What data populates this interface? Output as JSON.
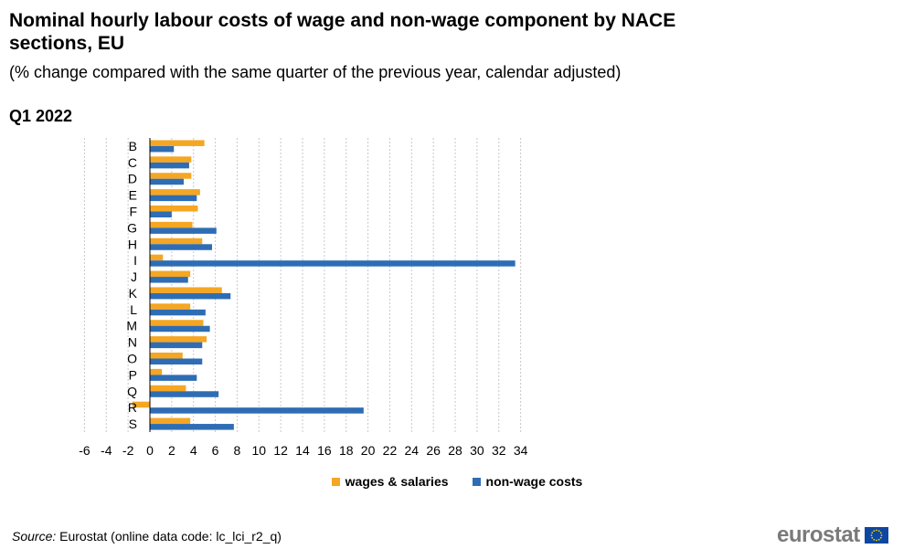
{
  "header": {
    "title": "Nominal hourly labour costs of wage and non-wage component by NACE sections, EU",
    "subtitle": "(% change compared with the same quarter of the previous year, calendar adjusted)",
    "period": "Q1 2022"
  },
  "source": {
    "label": "Source:",
    "text": " Eurostat (online data code: lc_lci_r2_q)"
  },
  "logo": {
    "text": "eurostat"
  },
  "colors": {
    "wages": "#f5a623",
    "nonwage": "#2e6db4",
    "grid": "#c8c8c8",
    "logo_blue": "#0e47a1",
    "logo_star": "#ffd400"
  },
  "chart_data": {
    "type": "bar",
    "orientation": "horizontal",
    "categories": [
      "B",
      "C",
      "D",
      "E",
      "F",
      "G",
      "H",
      "I",
      "J",
      "K",
      "L",
      "M",
      "N",
      "O",
      "P",
      "Q",
      "R",
      "S"
    ],
    "series": [
      {
        "name": "wages & salaries",
        "values": [
          5.0,
          3.8,
          3.8,
          4.6,
          4.4,
          3.9,
          4.8,
          1.2,
          3.7,
          6.6,
          3.7,
          4.9,
          5.2,
          3.0,
          1.1,
          3.3,
          -1.6,
          3.7
        ]
      },
      {
        "name": "non-wage costs",
        "values": [
          2.2,
          3.6,
          3.1,
          4.3,
          2.0,
          6.1,
          5.7,
          33.5,
          3.5,
          7.4,
          5.1,
          5.5,
          4.8,
          4.8,
          4.3,
          6.3,
          19.6,
          7.7
        ]
      }
    ],
    "xlim": [
      -6,
      34
    ],
    "xticks": [
      -6,
      -4,
      -2,
      0,
      2,
      4,
      6,
      8,
      10,
      12,
      14,
      16,
      18,
      20,
      22,
      24,
      26,
      28,
      30,
      32,
      34
    ],
    "grid": "vertical-dotted",
    "legend_position": "bottom"
  }
}
